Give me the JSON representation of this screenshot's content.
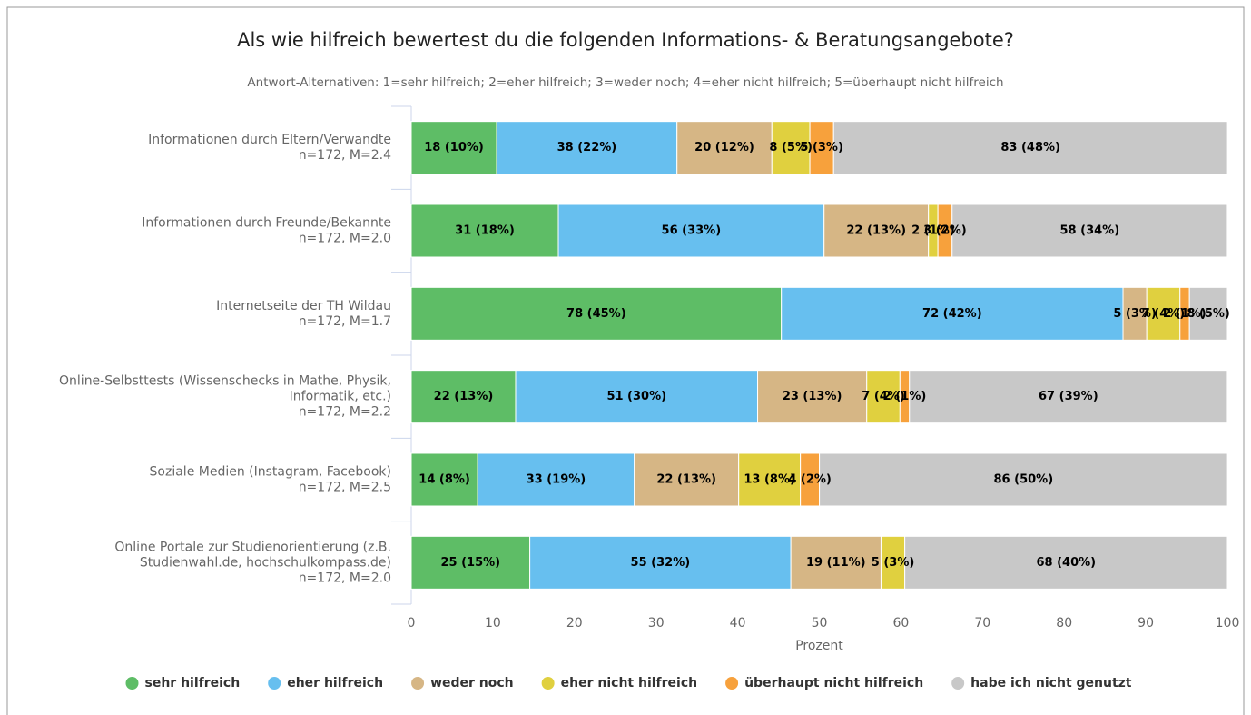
{
  "chart_data": {
    "type": "stacked-bar-horizontal",
    "title": "Als wie hilfreich bewertest du die folgenden Informations- & Beratungsangebote?",
    "subtitle": "Antwort-Alternativen: 1=sehr hilfreich; 2=eher hilfreich; 3=weder noch; 4=eher nicht hilfreich; 5=überhaupt nicht hilfreich",
    "categories": [
      [
        "Informationen durch Eltern/Verwandte"
      ],
      [
        "Informationen durch Freunde/Bekannte"
      ],
      [
        "Internetseite der TH Wildau"
      ],
      [
        "Online-Selbsttests (Wissenschecks in Mathe, Physik,",
        "Informatik, etc.)"
      ],
      [
        "Soziale Medien (Instagram, Facebook)"
      ],
      [
        "Online Portale zur Studienorientierung (z.B.",
        "Studienwahl.de, hochschulkompass.de)"
      ]
    ],
    "category_notes": [
      "n=172, M=2.4",
      "n=172, M=2.0",
      "n=172, M=1.7",
      "n=172, M=2.2",
      "n=172, M=2.5",
      "n=172, M=2.0"
    ],
    "series": [
      {
        "name": "sehr hilfreich",
        "color": "#5ebd66",
        "values": [
          10.47,
          18.02,
          45.35,
          12.79,
          8.14,
          14.53
        ],
        "value_labels": [
          "18 (10%)",
          "31 (18%)",
          "78 (45%)",
          "22 (13%)",
          "14 (8%)",
          "25 (15%)"
        ]
      },
      {
        "name": "eher hilfreich",
        "color": "#67bfef",
        "values": [
          22.09,
          32.56,
          41.86,
          29.65,
          19.19,
          31.98
        ],
        "value_labels": [
          "38 (22%)",
          "56 (33%)",
          "72 (42%)",
          "51 (30%)",
          "33 (19%)",
          "55 (32%)"
        ]
      },
      {
        "name": "weder noch",
        "color": "#d6b685",
        "values": [
          11.63,
          12.79,
          2.91,
          13.37,
          12.79,
          11.05
        ],
        "value_labels": [
          "20 (12%)",
          "22 (13%)",
          "5 (3%)",
          "23 (13%)",
          "22 (13%)",
          "19 (11%)"
        ]
      },
      {
        "name": "eher nicht hilfreich",
        "color": "#e0d03f",
        "values": [
          4.65,
          1.16,
          4.07,
          4.07,
          7.56,
          2.91
        ],
        "value_labels": [
          "8 (5%)",
          "2 (1%)",
          "7 (4%)",
          "7 (4%)",
          "13 (8%)",
          "5 (3%)"
        ]
      },
      {
        "name": "überhaupt nicht hilfreich",
        "color": "#f7a13c",
        "values": [
          2.91,
          1.74,
          1.16,
          1.16,
          2.33,
          0
        ],
        "value_labels": [
          "5 (3%)",
          "3 (2%)",
          "2 (1%)",
          "2 (1%)",
          "4 (2%)",
          null
        ]
      },
      {
        "name": "habe ich nicht genutzt",
        "color": "#c8c8c8",
        "values": [
          48.26,
          33.72,
          4.65,
          38.95,
          50.0,
          39.53
        ],
        "value_labels": [
          "83 (48%)",
          "58 (34%)",
          "8 (5%)",
          "67 (39%)",
          "86 (50%)",
          "68 (40%)"
        ]
      }
    ],
    "xlabel": "Prozent",
    "xlim": [
      0,
      100
    ],
    "xticks": [
      0,
      10,
      20,
      30,
      40,
      50,
      60,
      70,
      80,
      90,
      100
    ],
    "legend": "bottom"
  }
}
